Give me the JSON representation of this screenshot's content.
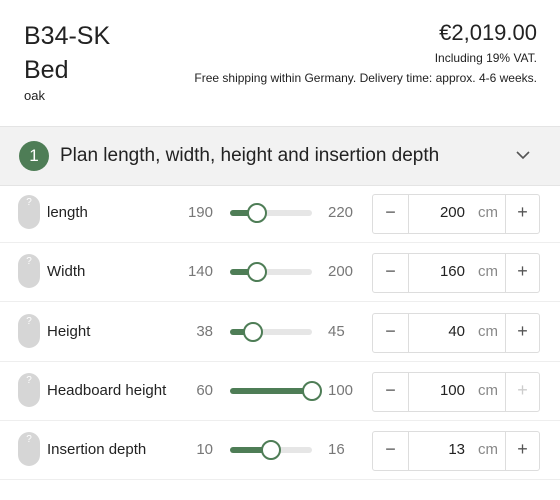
{
  "header": {
    "title": "B34-SK",
    "subtitle": "Bed",
    "variant": "oak",
    "price": "€2,019.00",
    "vat": "Including 19% VAT.",
    "shipping": "Free shipping within Germany. Delivery time: approx. 4-6 weeks."
  },
  "section": {
    "number": "1",
    "title": "Plan length, width, height and insertion depth"
  },
  "help_icon": "?",
  "controls": {
    "decrement": "−",
    "increment": "+"
  },
  "rows": [
    {
      "label": "length",
      "min": 190,
      "max": 220,
      "value": 200,
      "unit": "cm"
    },
    {
      "label": "Width",
      "min": 140,
      "max": 200,
      "value": 160,
      "unit": "cm"
    },
    {
      "label": "Height",
      "min": 38,
      "max": 45,
      "value": 40,
      "unit": "cm"
    },
    {
      "label": "Headboard height",
      "min": 60,
      "max": 100,
      "value": 100,
      "unit": "cm"
    },
    {
      "label": "Insertion depth",
      "min": 10,
      "max": 16,
      "value": 13,
      "unit": "cm"
    }
  ]
}
